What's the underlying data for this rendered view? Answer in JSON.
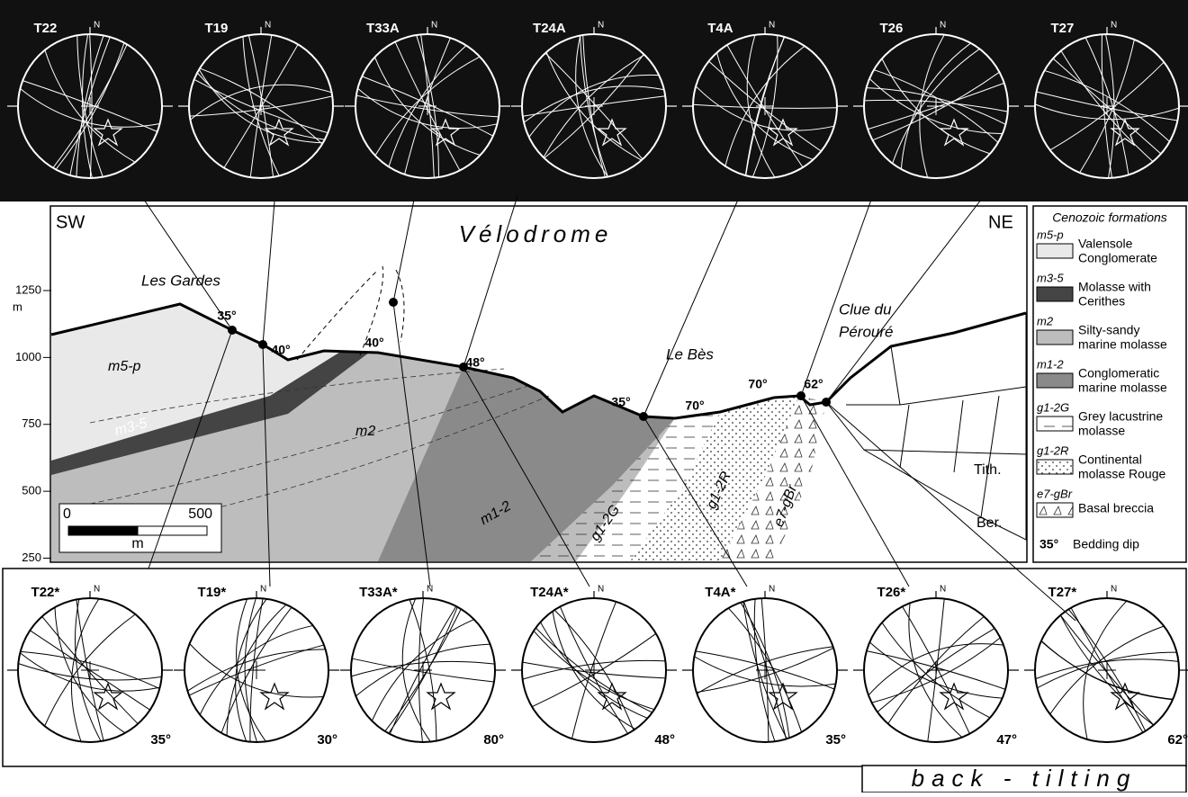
{
  "top_stereonets": [
    "T22",
    "T19",
    "T33A",
    "T24A",
    "T4A",
    "T26",
    "T27"
  ],
  "bottom_stereonets": [
    {
      "label": "T22*",
      "dip": "35°"
    },
    {
      "label": "T19*",
      "dip": "30°"
    },
    {
      "label": "T33A*",
      "dip": "80°"
    },
    {
      "label": "T24A*",
      "dip": "48°"
    },
    {
      "label": "T4A*",
      "dip": "35°"
    },
    {
      "label": "T26*",
      "dip": "47°"
    },
    {
      "label": "T27*",
      "dip": "62°"
    }
  ],
  "north": "N",
  "section": {
    "sw": "SW",
    "ne": "NE",
    "title": "Vélodrome",
    "places": [
      "Les Gardes",
      "Le Bès",
      "Clue du",
      "Pérouré"
    ],
    "dips": [
      "35°",
      "40°",
      "40°",
      "48°",
      "35°",
      "70°",
      "70°",
      "62°"
    ],
    "units": [
      "m5-p",
      "m3-5",
      "m2",
      "m1-2",
      "g1-2G",
      "g1-2R",
      "e7-gBr",
      "Tith.",
      "Ber."
    ],
    "elevation": {
      "ticks": [
        1250,
        1000,
        750,
        500,
        250
      ],
      "unit": "m"
    },
    "scale": {
      "labels": [
        "0",
        "500"
      ],
      "unit": "m"
    }
  },
  "legend": {
    "title": "Cenozoic formations",
    "items": [
      {
        "code": "m5-p",
        "label": [
          "Valensole",
          "Conglomerate"
        ]
      },
      {
        "code": "m3-5",
        "label": [
          "Molasse with",
          "Cerithes"
        ]
      },
      {
        "code": "m2",
        "label": [
          "Silty-sandy",
          "marine molasse"
        ]
      },
      {
        "code": "m1-2",
        "label": [
          "Conglomeratic",
          "marine molasse"
        ]
      },
      {
        "code": "g1-2G",
        "label": [
          "Grey lacustrine",
          "molasse"
        ]
      },
      {
        "code": "g1-2R",
        "label": [
          "Continental",
          "molasse Rouge"
        ]
      },
      {
        "code": "e7-gBr",
        "label": [
          "Basal breccia"
        ]
      }
    ],
    "dip": {
      "symbol": "35°",
      "label": "Bedding dip"
    }
  },
  "footer": "back - tilting"
}
